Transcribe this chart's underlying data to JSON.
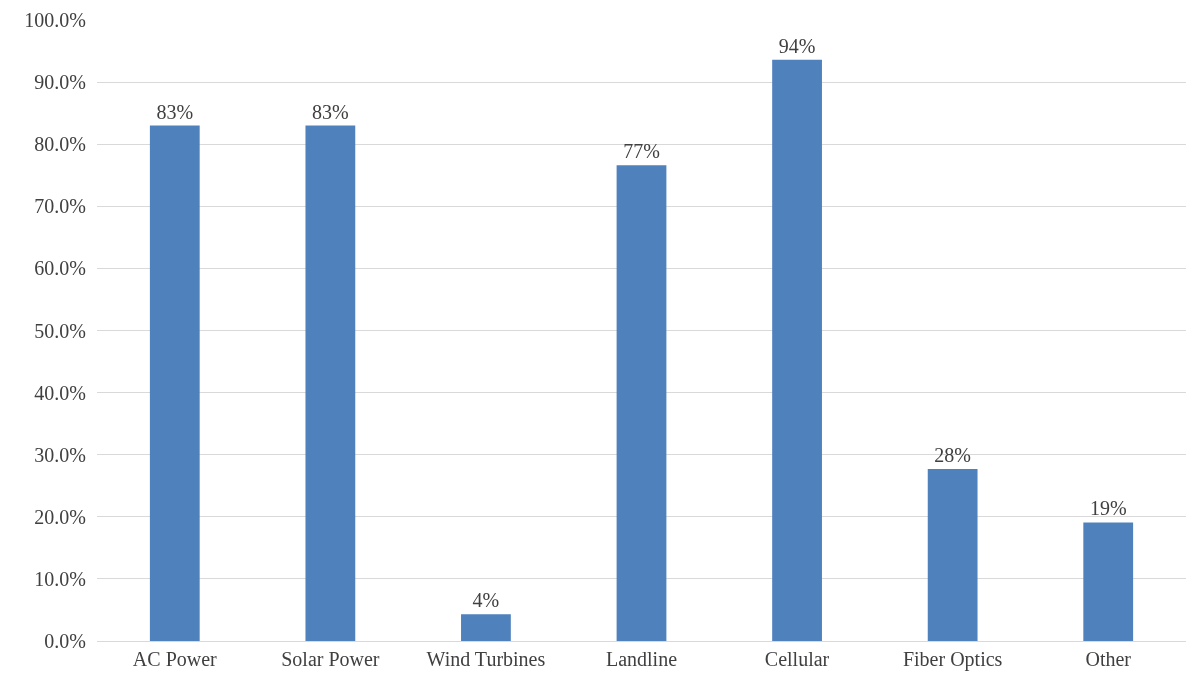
{
  "chart_data": {
    "type": "bar",
    "categories": [
      "AC Power",
      "Solar Power",
      "Wind Turbines",
      "Landline",
      "Cellular",
      "Fiber Optics",
      "Other"
    ],
    "values": [
      83.0,
      83.0,
      4.3,
      76.6,
      93.6,
      27.7,
      19.1
    ],
    "value_labels": [
      "83%",
      "83%",
      "4%",
      "77%",
      "94%",
      "28%",
      "19%"
    ],
    "color": "#4f81bd",
    "ylim": [
      0,
      100
    ],
    "yticks": [
      {
        "value": 0,
        "label": "0.0%"
      },
      {
        "value": 10,
        "label": "10.0%"
      },
      {
        "value": 20,
        "label": "20.0%"
      },
      {
        "value": 30,
        "label": "30.0%"
      },
      {
        "value": 40,
        "label": "40.0%"
      },
      {
        "value": 50,
        "label": "50.0%"
      },
      {
        "value": 60,
        "label": "60.0%"
      },
      {
        "value": 70,
        "label": "70.0%"
      },
      {
        "value": 80,
        "label": "80.0%"
      },
      {
        "value": 90,
        "label": "90.0%"
      },
      {
        "value": 100,
        "label": "100.0%"
      }
    ],
    "grid": "y"
  }
}
